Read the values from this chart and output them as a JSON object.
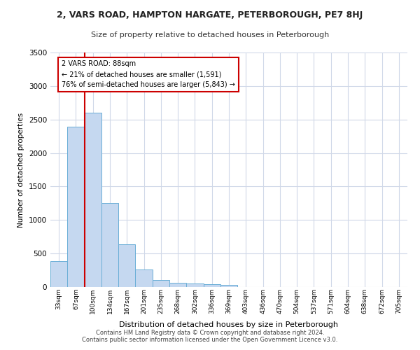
{
  "title1": "2, VARS ROAD, HAMPTON HARGATE, PETERBOROUGH, PE7 8HJ",
  "title2": "Size of property relative to detached houses in Peterborough",
  "xlabel": "Distribution of detached houses by size in Peterborough",
  "ylabel": "Number of detached properties",
  "bar_labels": [
    "33sqm",
    "67sqm",
    "100sqm",
    "134sqm",
    "167sqm",
    "201sqm",
    "235sqm",
    "268sqm",
    "302sqm",
    "336sqm",
    "369sqm",
    "403sqm",
    "436sqm",
    "470sqm",
    "504sqm",
    "537sqm",
    "571sqm",
    "604sqm",
    "638sqm",
    "672sqm",
    "705sqm"
  ],
  "bar_values": [
    390,
    2390,
    2600,
    1250,
    640,
    260,
    100,
    60,
    55,
    45,
    30,
    0,
    0,
    0,
    0,
    0,
    0,
    0,
    0,
    0,
    0
  ],
  "bar_color": "#c5d8f0",
  "bar_edgecolor": "#6aaed6",
  "annotation_text": "2 VARS ROAD: 88sqm\n← 21% of detached houses are smaller (1,591)\n76% of semi-detached houses are larger (5,843) →",
  "vline_color": "#cc0000",
  "vline_x": 1.5,
  "ylim": [
    0,
    3500
  ],
  "yticks": [
    0,
    500,
    1000,
    1500,
    2000,
    2500,
    3000,
    3500
  ],
  "footer1": "Contains HM Land Registry data © Crown copyright and database right 2024.",
  "footer2": "Contains public sector information licensed under the Open Government Licence v3.0.",
  "background_color": "#ffffff",
  "plot_background": "#ffffff",
  "grid_color": "#d0d8e8"
}
